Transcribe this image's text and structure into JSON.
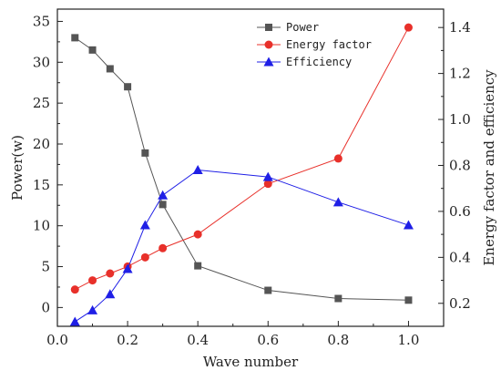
{
  "chart_data": {
    "type": "line",
    "title": "",
    "xlabel": "Wave number",
    "ylabel_left": "Power(w)",
    "ylabel_right": "Energy factor and efficiency",
    "xlim": [
      0.0,
      1.1
    ],
    "ylim_left": [
      -2.3,
      36.5
    ],
    "ylim_right": [
      0.1,
      1.48
    ],
    "x_ticks": [
      "0.0",
      "0.2",
      "0.4",
      "0.6",
      "0.8",
      "1.0"
    ],
    "y_left_ticks": [
      "0",
      "5",
      "10",
      "15",
      "20",
      "25",
      "30",
      "35"
    ],
    "y_right_ticks": [
      "0.2",
      "0.4",
      "0.6",
      "0.8",
      "1.0",
      "1.2",
      "1.4"
    ],
    "grid": false,
    "legend_position": "top-right",
    "series": [
      {
        "name": "Power",
        "axis": "left",
        "color": "#555555",
        "marker": "square",
        "x": [
          0.05,
          0.1,
          0.15,
          0.2,
          0.25,
          0.3,
          0.4,
          0.6,
          0.8,
          1.0
        ],
        "y": [
          33.0,
          31.5,
          29.2,
          27.0,
          18.9,
          12.6,
          5.1,
          2.1,
          1.1,
          0.9
        ]
      },
      {
        "name": "Energy factor",
        "axis": "right",
        "color": "#e8302a",
        "marker": "circle",
        "x": [
          0.05,
          0.1,
          0.15,
          0.2,
          0.25,
          0.3,
          0.4,
          0.6,
          0.8,
          1.0
        ],
        "y": [
          0.26,
          0.3,
          0.33,
          0.36,
          0.4,
          0.44,
          0.5,
          0.72,
          0.83,
          1.4
        ]
      },
      {
        "name": "Efficiency",
        "axis": "right",
        "color": "#1f1fe6",
        "marker": "triangle",
        "x": [
          0.05,
          0.1,
          0.15,
          0.2,
          0.25,
          0.3,
          0.4,
          0.6,
          0.8,
          1.0
        ],
        "y": [
          0.12,
          0.17,
          0.24,
          0.35,
          0.54,
          0.67,
          0.78,
          0.75,
          0.64,
          0.54
        ]
      }
    ]
  }
}
